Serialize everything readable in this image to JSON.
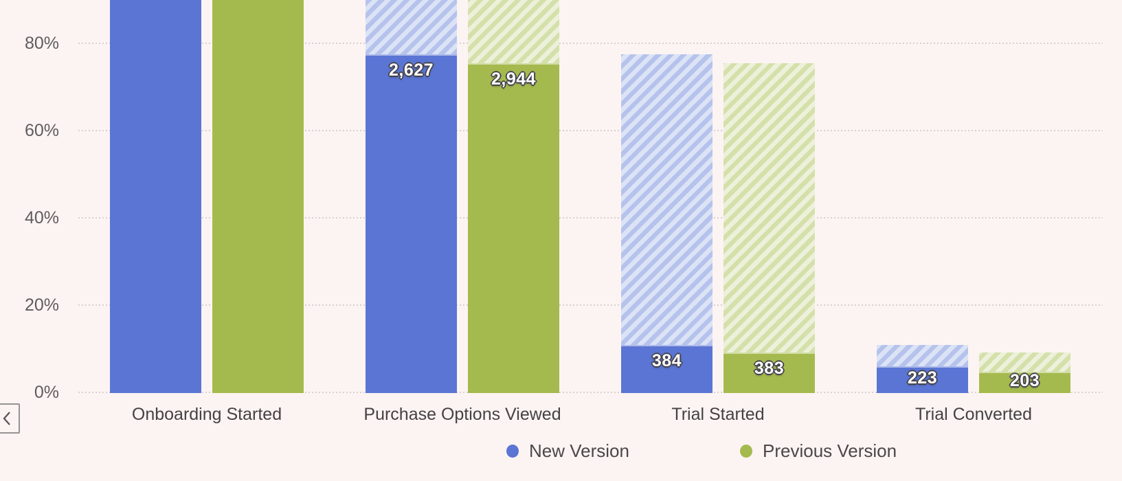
{
  "page": {
    "background": "#fcf4f2"
  },
  "controls": {
    "scroll_left_icon": "chevron-left"
  },
  "legend": {
    "position": "bottom",
    "items": [
      {
        "label": "New Version",
        "color": "#5a75d3"
      },
      {
        "label": "Previous Version",
        "color": "#a5ba4e"
      }
    ]
  },
  "chart_data": {
    "type": "bar",
    "subtype": "funnel-comparison",
    "title": "",
    "xlabel": "",
    "ylabel": "",
    "ylim": [
      0,
      100
    ],
    "visible_top_pct": 90,
    "grid": "dotted horizontal",
    "legend_position": "bottom",
    "categories": [
      "Onboarding Started",
      "Purchase Options Viewed",
      "Trial Started",
      "Trial Converted"
    ],
    "y_ticks": [
      {
        "label": "80%",
        "pct": 80
      },
      {
        "label": "60%",
        "pct": 60
      },
      {
        "label": "40%",
        "pct": 40
      },
      {
        "label": "20%",
        "pct": 20
      },
      {
        "label": "0%",
        "pct": 0
      }
    ],
    "series": [
      {
        "name": "New Version",
        "color": "#5a75d3",
        "hatch_stripe": "#b5c3ec",
        "hatch_bg": "#dce3f6",
        "pct": [
          100,
          77.6,
          11.0,
          6.2
        ],
        "counts": [
          null,
          "2,627",
          "384",
          "223"
        ]
      },
      {
        "name": "Previous Version",
        "color": "#a5ba4e",
        "hatch_stripe": "#d4e0a9",
        "hatch_bg": "#edf0da",
        "pct": [
          100,
          75.6,
          9.3,
          4.9
        ],
        "counts": [
          null,
          "2,944",
          "383",
          "203"
        ]
      }
    ],
    "hatch_meaning": "striped area = drop-off from previous step"
  }
}
